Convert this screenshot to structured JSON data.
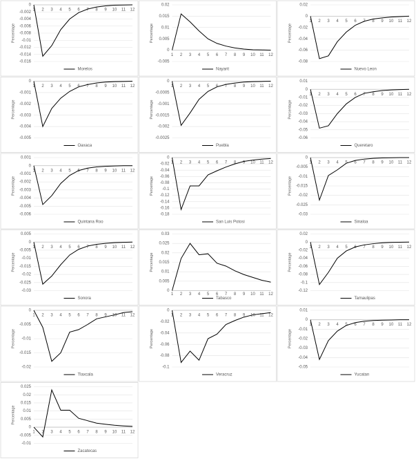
{
  "chart_data": [
    {
      "type": "line",
      "ylabel": "Percentage",
      "categories": [
        1,
        2,
        3,
        4,
        5,
        6,
        7,
        8,
        9,
        10,
        11,
        12
      ],
      "ylim": [
        -0.016,
        0
      ],
      "yticks": [
        0,
        -0.002,
        -0.004,
        -0.006,
        -0.008,
        -0.01,
        -0.012,
        -0.014,
        -0.016
      ],
      "grid": true,
      "series": [
        {
          "name": "Morelos",
          "color": "#000000",
          "values": [
            0,
            -0.0145,
            -0.0115,
            -0.007,
            -0.004,
            -0.0022,
            -0.0012,
            -0.0006,
            -0.0003,
            -0.0001,
            -5e-05,
            0
          ]
        }
      ]
    },
    {
      "type": "line",
      "ylabel": "Percentage",
      "categories": [
        1,
        2,
        3,
        4,
        5,
        6,
        7,
        8,
        9,
        10,
        11,
        12
      ],
      "ylim": [
        -0.005,
        0.02
      ],
      "yticks": [
        -0.005,
        0,
        0.005,
        0.01,
        0.015,
        0.02
      ],
      "grid": true,
      "series": [
        {
          "name": "Nayarit",
          "color": "#000000",
          "values": [
            0,
            0.016,
            0.0125,
            0.0085,
            0.005,
            0.003,
            0.0018,
            0.001,
            0.0005,
            0.0002,
            0.0001,
            0
          ]
        }
      ]
    },
    {
      "type": "line",
      "ylabel": "Percentage",
      "categories": [
        1,
        2,
        3,
        4,
        5,
        6,
        7,
        8,
        9,
        10,
        11,
        12
      ],
      "ylim": [
        -0.08,
        0.02
      ],
      "yticks": [
        -0.08,
        -0.06,
        -0.04,
        -0.02,
        0,
        0.02
      ],
      "grid": true,
      "series": [
        {
          "name": "Nuevo Leon",
          "color": "#000000",
          "values": [
            0,
            -0.075,
            -0.07,
            -0.045,
            -0.028,
            -0.016,
            -0.009,
            -0.005,
            -0.003,
            -0.0015,
            -0.0007,
            0
          ]
        }
      ]
    },
    {
      "type": "line",
      "ylabel": "Percentage",
      "categories": [
        1,
        2,
        3,
        4,
        5,
        6,
        7,
        8,
        9,
        10,
        11,
        12
      ],
      "ylim": [
        -0.005,
        0
      ],
      "yticks": [
        0,
        -0.001,
        -0.002,
        -0.003,
        -0.004,
        -0.005
      ],
      "grid": true,
      "series": [
        {
          "name": "Oaxaca",
          "color": "#000000",
          "values": [
            0,
            -0.004,
            -0.0024,
            -0.0015,
            -0.0009,
            -0.0005,
            -0.0003,
            -0.00015,
            -8e-05,
            -4e-05,
            -2e-05,
            0
          ]
        }
      ]
    },
    {
      "type": "line",
      "ylabel": "Percentage",
      "categories": [
        1,
        2,
        3,
        4,
        5,
        6,
        7,
        8,
        9,
        10,
        11,
        12
      ],
      "ylim": [
        -0.0025,
        0
      ],
      "yticks": [
        0,
        -0.0005,
        -0.001,
        -0.0015,
        -0.002,
        -0.0025
      ],
      "grid": true,
      "series": [
        {
          "name": "Puebla",
          "color": "#000000",
          "values": [
            0,
            -0.00195,
            -0.0014,
            -0.0008,
            -0.00045,
            -0.00025,
            -0.00014,
            -8e-05,
            -4e-05,
            -2e-05,
            -1e-05,
            0
          ]
        }
      ]
    },
    {
      "type": "line",
      "ylabel": "Percentage",
      "categories": [
        1,
        2,
        3,
        4,
        5,
        6,
        7,
        8,
        9,
        10,
        11,
        12
      ],
      "ylim": [
        -0.06,
        0.01
      ],
      "yticks": [
        0.01,
        0,
        -0.01,
        -0.02,
        -0.03,
        -0.04,
        -0.05,
        -0.06
      ],
      "grid": true,
      "series": [
        {
          "name": "Queretaro",
          "color": "#000000",
          "values": [
            0,
            -0.048,
            -0.045,
            -0.03,
            -0.018,
            -0.01,
            -0.005,
            -0.003,
            -0.0015,
            -0.0008,
            -0.0004,
            0
          ]
        }
      ]
    },
    {
      "type": "line",
      "ylabel": "Percentage",
      "categories": [
        1,
        2,
        3,
        4,
        5,
        6,
        7,
        8,
        9,
        10,
        11,
        12
      ],
      "ylim": [
        -0.006,
        0.001
      ],
      "yticks": [
        0.001,
        0,
        -0.001,
        -0.002,
        -0.003,
        -0.004,
        -0.005,
        -0.006
      ],
      "grid": true,
      "series": [
        {
          "name": "Quintana Roo",
          "color": "#000000",
          "values": [
            0,
            -0.0048,
            -0.0037,
            -0.0022,
            -0.0012,
            -0.0006,
            -0.0003,
            -0.00015,
            -8e-05,
            -4e-05,
            0,
            0
          ]
        }
      ]
    },
    {
      "type": "line",
      "ylabel": "Percentage",
      "categories": [
        1,
        2,
        3,
        4,
        5,
        6,
        7,
        8,
        9,
        10,
        11,
        12
      ],
      "ylim": [
        -0.18,
        0
      ],
      "yticks": [
        0,
        -0.02,
        -0.04,
        -0.06,
        -0.08,
        -0.1,
        -0.12,
        -0.14,
        -0.16,
        -0.18
      ],
      "grid": true,
      "series": [
        {
          "name": "San Luis Potosi",
          "color": "#000000",
          "values": [
            0,
            -0.165,
            -0.09,
            -0.09,
            -0.055,
            -0.042,
            -0.03,
            -0.02,
            -0.012,
            -0.008,
            -0.005,
            -0.003
          ]
        }
      ]
    },
    {
      "type": "line",
      "ylabel": "Percentage",
      "categories": [
        1,
        2,
        3,
        4,
        5,
        6,
        7,
        8,
        9,
        10,
        11,
        12
      ],
      "ylim": [
        -0.03,
        0
      ],
      "yticks": [
        0,
        -0.005,
        -0.01,
        -0.015,
        -0.02,
        -0.025,
        -0.03
      ],
      "grid": true,
      "series": [
        {
          "name": "Sinaloa",
          "color": "#000000",
          "values": [
            0,
            -0.0225,
            -0.0095,
            -0.0065,
            -0.003,
            -0.0015,
            -0.0008,
            -0.0004,
            -0.0002,
            -0.0001,
            0,
            0
          ]
        }
      ]
    },
    {
      "type": "line",
      "ylabel": "Percentage",
      "categories": [
        1,
        2,
        3,
        4,
        5,
        6,
        7,
        8,
        9,
        10,
        11,
        12
      ],
      "ylim": [
        -0.03,
        0.005
      ],
      "yticks": [
        0.005,
        0,
        -0.005,
        -0.01,
        -0.015,
        -0.02,
        -0.025,
        -0.03
      ],
      "grid": true,
      "series": [
        {
          "name": "Sonora",
          "color": "#000000",
          "values": [
            0,
            -0.026,
            -0.021,
            -0.014,
            -0.008,
            -0.0045,
            -0.0025,
            -0.0014,
            -0.0008,
            -0.0004,
            -0.0002,
            0
          ]
        }
      ]
    },
    {
      "type": "line",
      "ylabel": "Percentage",
      "categories": [
        1,
        2,
        3,
        4,
        5,
        6,
        7,
        8,
        9,
        10,
        11,
        12
      ],
      "ylim": [
        0,
        0.03
      ],
      "yticks": [
        0,
        0.005,
        0.01,
        0.015,
        0.02,
        0.025,
        0.03
      ],
      "grid": true,
      "series": [
        {
          "name": "Tabasco",
          "color": "#000000",
          "values": [
            0,
            0.017,
            0.025,
            0.019,
            0.0195,
            0.0145,
            0.013,
            0.0105,
            0.0085,
            0.007,
            0.0055,
            0.0045
          ]
        }
      ]
    },
    {
      "type": "line",
      "ylabel": "Percentage",
      "categories": [
        1,
        2,
        3,
        4,
        5,
        6,
        7,
        8,
        9,
        10,
        11,
        12
      ],
      "ylim": [
        -0.12,
        0.02
      ],
      "yticks": [
        0.02,
        0,
        -0.02,
        -0.04,
        -0.06,
        -0.08,
        -0.1,
        -0.12
      ],
      "grid": true,
      "series": [
        {
          "name": "Tamaulipas",
          "color": "#000000",
          "values": [
            0,
            -0.105,
            -0.075,
            -0.04,
            -0.022,
            -0.012,
            -0.007,
            -0.004,
            -0.002,
            -0.001,
            -0.0005,
            0
          ]
        }
      ]
    },
    {
      "type": "line",
      "ylabel": "Percentage",
      "categories": [
        1,
        2,
        3,
        4,
        5,
        6,
        7,
        8,
        9,
        10,
        11,
        12
      ],
      "ylim": [
        -0.02,
        0
      ],
      "yticks": [
        0,
        -0.005,
        -0.01,
        -0.015,
        -0.02
      ],
      "grid": true,
      "series": [
        {
          "name": "Tlaxcala",
          "color": "#000000",
          "values": [
            0,
            -0.006,
            -0.018,
            -0.015,
            -0.0077,
            -0.0068,
            -0.005,
            -0.003,
            -0.0023,
            -0.0016,
            -0.0008,
            -0.0005
          ]
        }
      ]
    },
    {
      "type": "line",
      "ylabel": "Percentage",
      "categories": [
        1,
        2,
        3,
        4,
        5,
        6,
        7,
        8,
        9,
        10,
        11,
        12
      ],
      "ylim": [
        -0.1,
        0
      ],
      "yticks": [
        0,
        -0.02,
        -0.04,
        -0.06,
        -0.08,
        -0.1
      ],
      "grid": true,
      "series": [
        {
          "name": "Veracruz",
          "color": "#000000",
          "values": [
            0,
            -0.092,
            -0.072,
            -0.088,
            -0.05,
            -0.042,
            -0.025,
            -0.018,
            -0.012,
            -0.008,
            -0.006,
            -0.004
          ]
        }
      ]
    },
    {
      "type": "line",
      "ylabel": "Percentage",
      "categories": [
        1,
        2,
        3,
        4,
        5,
        6,
        7,
        8,
        9,
        10,
        11,
        12
      ],
      "ylim": [
        -0.05,
        0.01
      ],
      "yticks": [
        0.01,
        0,
        -0.01,
        -0.02,
        -0.03,
        -0.04,
        -0.05
      ],
      "grid": true,
      "series": [
        {
          "name": "Yucatan",
          "color": "#000000",
          "values": [
            0,
            -0.042,
            -0.022,
            -0.012,
            -0.006,
            -0.003,
            -0.0015,
            -0.0008,
            -0.0004,
            -0.0002,
            0,
            0
          ]
        }
      ]
    },
    {
      "type": "line",
      "ylabel": "Percentage",
      "categories": [
        1,
        2,
        3,
        4,
        5,
        6,
        7,
        8,
        9,
        10,
        11,
        12
      ],
      "ylim": [
        -0.01,
        0.025
      ],
      "yticks": [
        0.025,
        0.02,
        0.015,
        0.01,
        0.005,
        0,
        -0.005,
        -0.01
      ],
      "grid": true,
      "series": [
        {
          "name": "Zacatecas",
          "color": "#000000",
          "values": [
            0,
            -0.006,
            0.023,
            0.0105,
            0.0105,
            0.0055,
            0.004,
            0.0025,
            0.0018,
            0.0012,
            0.0008,
            0.0005
          ]
        }
      ]
    }
  ]
}
